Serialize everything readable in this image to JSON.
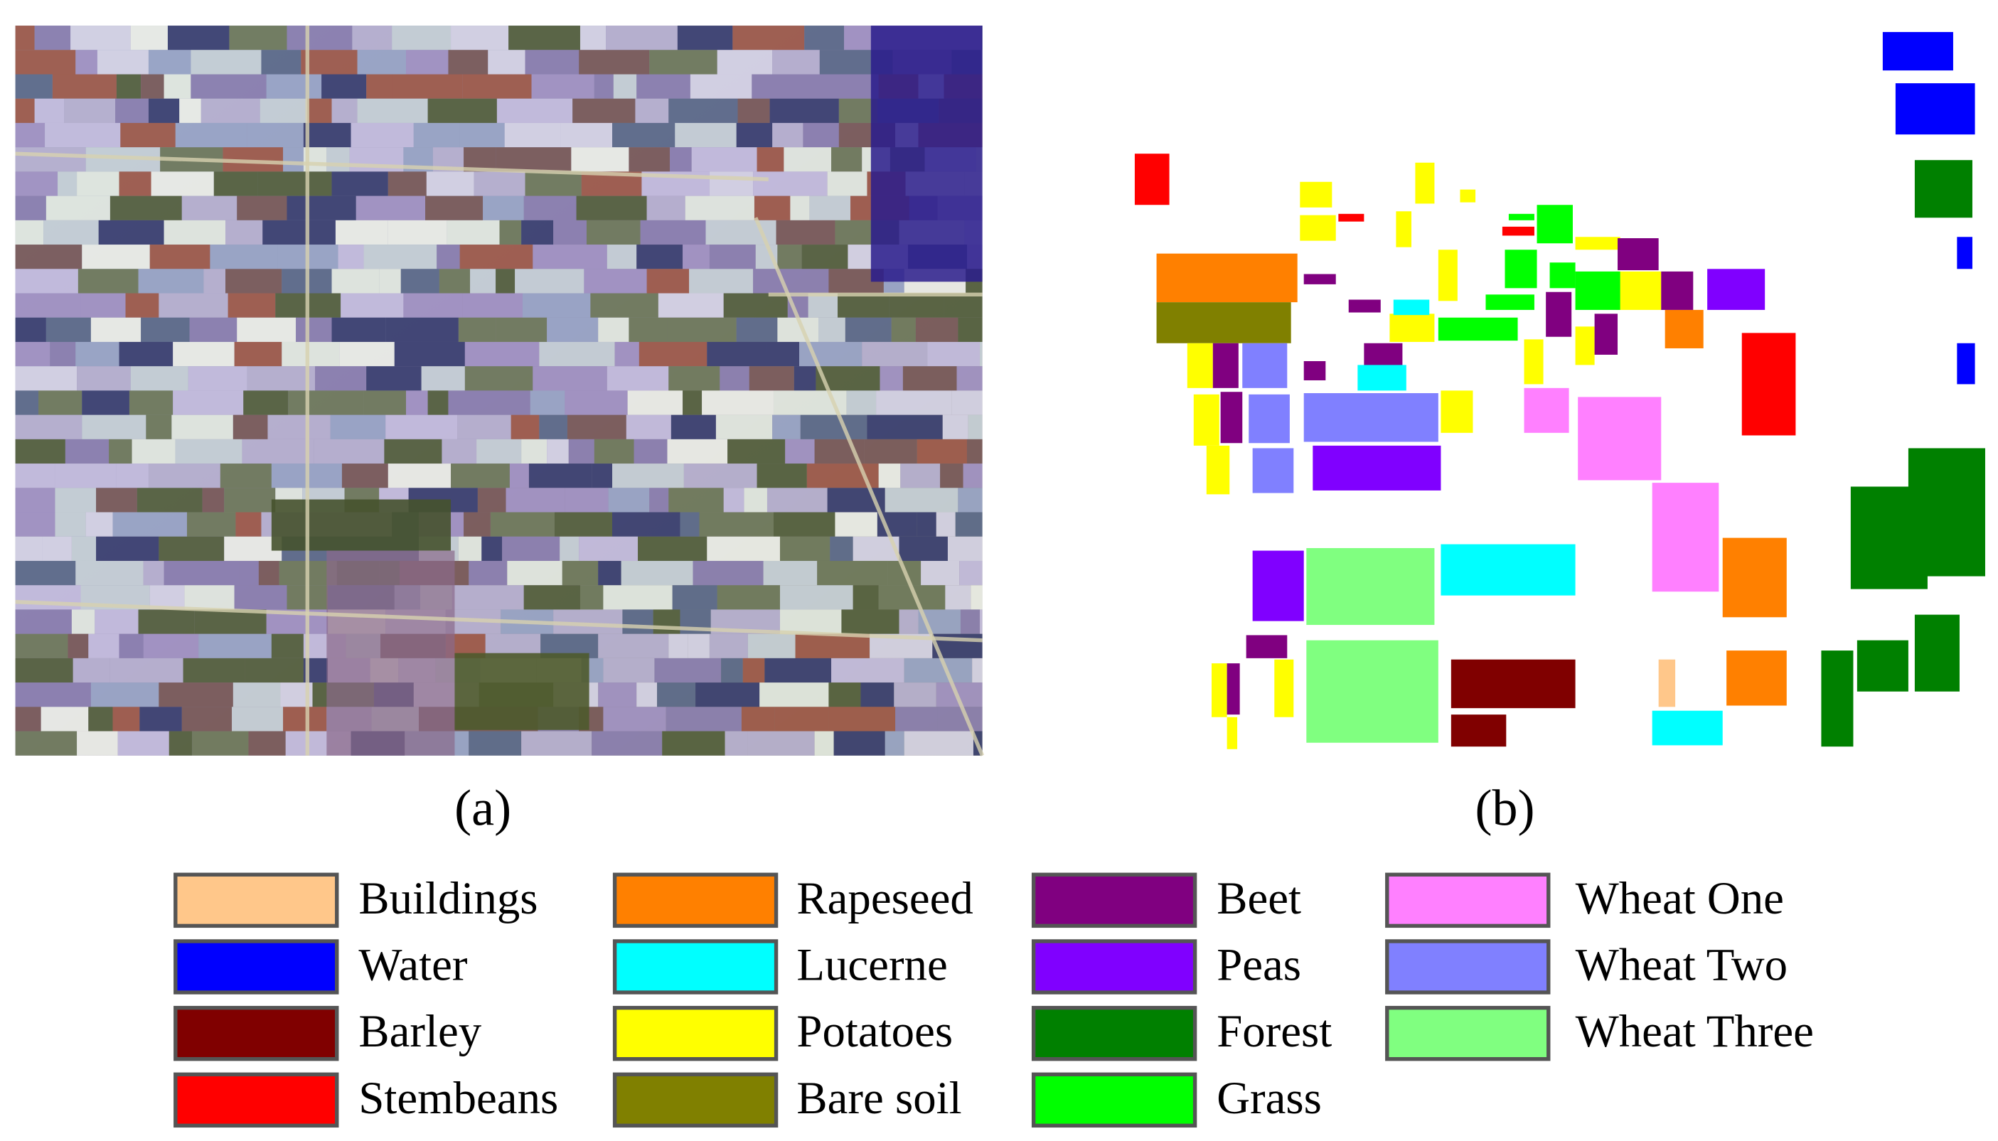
{
  "figure": {
    "panels": [
      {
        "caption": "(a)"
      },
      {
        "caption": "(b)"
      }
    ],
    "legend": [
      {
        "label": "Buildings",
        "color": "#ffc78a"
      },
      {
        "label": "Water",
        "color": "#0000ff"
      },
      {
        "label": "Barley",
        "color": "#800000"
      },
      {
        "label": "Stembeans",
        "color": "#ff0000"
      },
      {
        "label": "Rapeseed",
        "color": "#ff8000"
      },
      {
        "label": "Lucerne",
        "color": "#00ffff"
      },
      {
        "label": "Potatoes",
        "color": "#ffff00"
      },
      {
        "label": "Bare soil",
        "color": "#808000"
      },
      {
        "label": "Beet",
        "color": "#800080"
      },
      {
        "label": "Peas",
        "color": "#8000ff"
      },
      {
        "label": "Forest",
        "color": "#008000"
      },
      {
        "label": "Grass",
        "color": "#00ff00"
      },
      {
        "label": "Wheat One",
        "color": "#ff80ff"
      },
      {
        "label": "Wheat Two",
        "color": "#8080ff"
      },
      {
        "label": "Wheat Three",
        "color": "#80ff80"
      }
    ]
  }
}
